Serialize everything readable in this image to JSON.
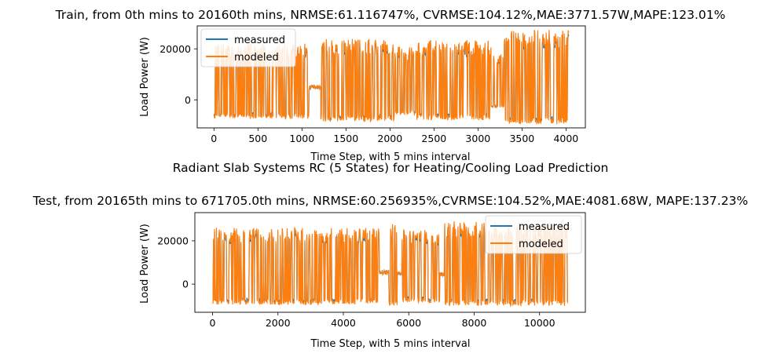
{
  "figure": {
    "suptitle": "Radiant Slab Systems RC (5 States) for Heating/Cooling Load Prediction"
  },
  "colors": {
    "measured": "#1f77b4",
    "modeled": "#ff7f0e",
    "axis": "#000000",
    "legend_border": "#cccccc"
  },
  "chart_data": [
    {
      "type": "line",
      "title": "Train, from 0th mins to 20160th mins, NRMSE:61.116747%, CVRMSE:104.12%,MAE:3771.57W,MAPE:123.01%",
      "xlabel": "Time Step, with 5 mins interval",
      "ylabel": "Load Power (W)",
      "xlim": [
        -190,
        4220
      ],
      "ylim": [
        -11000,
        29000
      ],
      "x_ticks": [
        0,
        500,
        1000,
        1500,
        2000,
        2500,
        3000,
        3500,
        4000
      ],
      "x_tick_labels": [
        "0",
        "500",
        "1000",
        "1500",
        "2000",
        "2500",
        "3000",
        "3500",
        "4000"
      ],
      "y_ticks": [
        0,
        20000
      ],
      "y_tick_labels": [
        "0",
        "20000"
      ],
      "grid": false,
      "legend_position": "upper-left",
      "x_max": 4032,
      "segments": [
        {
          "x": [
            0,
            1080
          ],
          "low": -7500,
          "high": 22000,
          "density": 0.55
        },
        {
          "x": [
            1080,
            1215
          ],
          "low": 2000,
          "high": 7500,
          "density": 0.0,
          "measured_only": true
        },
        {
          "x": [
            1215,
            2050
          ],
          "low": -8500,
          "high": 24000,
          "density": 0.6
        },
        {
          "x": [
            2050,
            2300
          ],
          "low": -6000,
          "high": 21000,
          "density": 0.35
        },
        {
          "x": [
            2300,
            3150
          ],
          "low": -8000,
          "high": 23500,
          "density": 0.55
        },
        {
          "x": [
            3150,
            3300
          ],
          "low": -3000,
          "high": 18000,
          "density": 0.25
        },
        {
          "x": [
            3300,
            4032
          ],
          "low": -9500,
          "high": 27500,
          "density": 0.65
        }
      ],
      "series": [
        {
          "name": "measured",
          "values_summary": {
            "min": -7500,
            "max": 27000
          }
        },
        {
          "name": "modeled",
          "values_summary": {
            "min": -10000,
            "max": 27500
          }
        }
      ]
    },
    {
      "type": "line",
      "title": "Test, from 20165th mins to 671705.0th mins, NRMSE:60.256935%,CVRMSE:104.52%,MAE:4081.68W, MAPE:137.23%",
      "xlabel": "Time Step, with 5 mins interval",
      "ylabel": "Load Power (W)",
      "xlim": [
        -540,
        11400
      ],
      "ylim": [
        -13000,
        33000
      ],
      "x_ticks": [
        0,
        2000,
        4000,
        6000,
        8000,
        10000
      ],
      "x_tick_labels": [
        "0",
        "2000",
        "4000",
        "6000",
        "8000",
        "10000"
      ],
      "y_ticks": [
        0,
        20000
      ],
      "y_tick_labels": [
        "0",
        "20000"
      ],
      "grid": false,
      "legend_position": "upper-right",
      "x_max": 10860,
      "segments": [
        {
          "x": [
            0,
            5100
          ],
          "low": -9500,
          "high": 26000,
          "density": 0.7
        },
        {
          "x": [
            5100,
            5400
          ],
          "low": 2000,
          "high": 9000,
          "density": 0.0,
          "measured_only": true
        },
        {
          "x": [
            5400,
            5650
          ],
          "low": -10000,
          "high": 28000,
          "density": 0.6
        },
        {
          "x": [
            5650,
            5800
          ],
          "low": 2000,
          "high": 8000,
          "density": 0.0,
          "measured_only": true
        },
        {
          "x": [
            5800,
            6950
          ],
          "low": -8500,
          "high": 25000,
          "density": 0.6
        },
        {
          "x": [
            6950,
            7100
          ],
          "low": 2000,
          "high": 7000,
          "density": 0.0,
          "measured_only": true
        },
        {
          "x": [
            7100,
            10860
          ],
          "low": -10000,
          "high": 29000,
          "density": 0.75
        }
      ],
      "series": [
        {
          "name": "measured",
          "values_summary": {
            "min": -9000,
            "max": 29000
          }
        },
        {
          "name": "modeled",
          "values_summary": {
            "min": -11000,
            "max": 30000
          }
        }
      ]
    }
  ]
}
